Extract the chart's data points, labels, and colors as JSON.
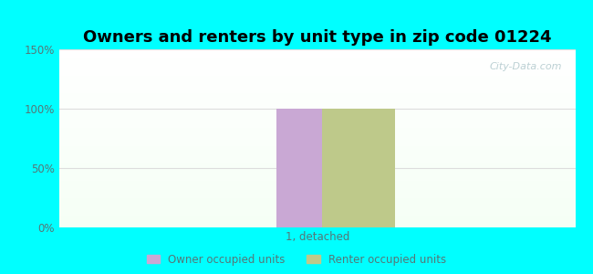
{
  "title": "Owners and renters by unit type in zip code 01224",
  "categories": [
    "1, detached"
  ],
  "owner_values": [
    100
  ],
  "renter_values": [
    100
  ],
  "owner_color": "#c9a8d4",
  "renter_color": "#bec98a",
  "ylim": [
    0,
    150
  ],
  "yticks": [
    0,
    50,
    100,
    150
  ],
  "ytick_labels": [
    "0%",
    "50%",
    "100%",
    "150%"
  ],
  "outer_bg": "#00ffff",
  "watermark": "City-Data.com",
  "legend_owner": "Owner occupied units",
  "legend_renter": "Renter occupied units",
  "bar_width": 0.28,
  "title_fontsize": 13,
  "xlabel": "1, detached",
  "grid_color": "#dddddd",
  "tick_color": "#557777",
  "bg_top_color": "#eaf5ea",
  "bg_bottom_color": "#f5fff5"
}
